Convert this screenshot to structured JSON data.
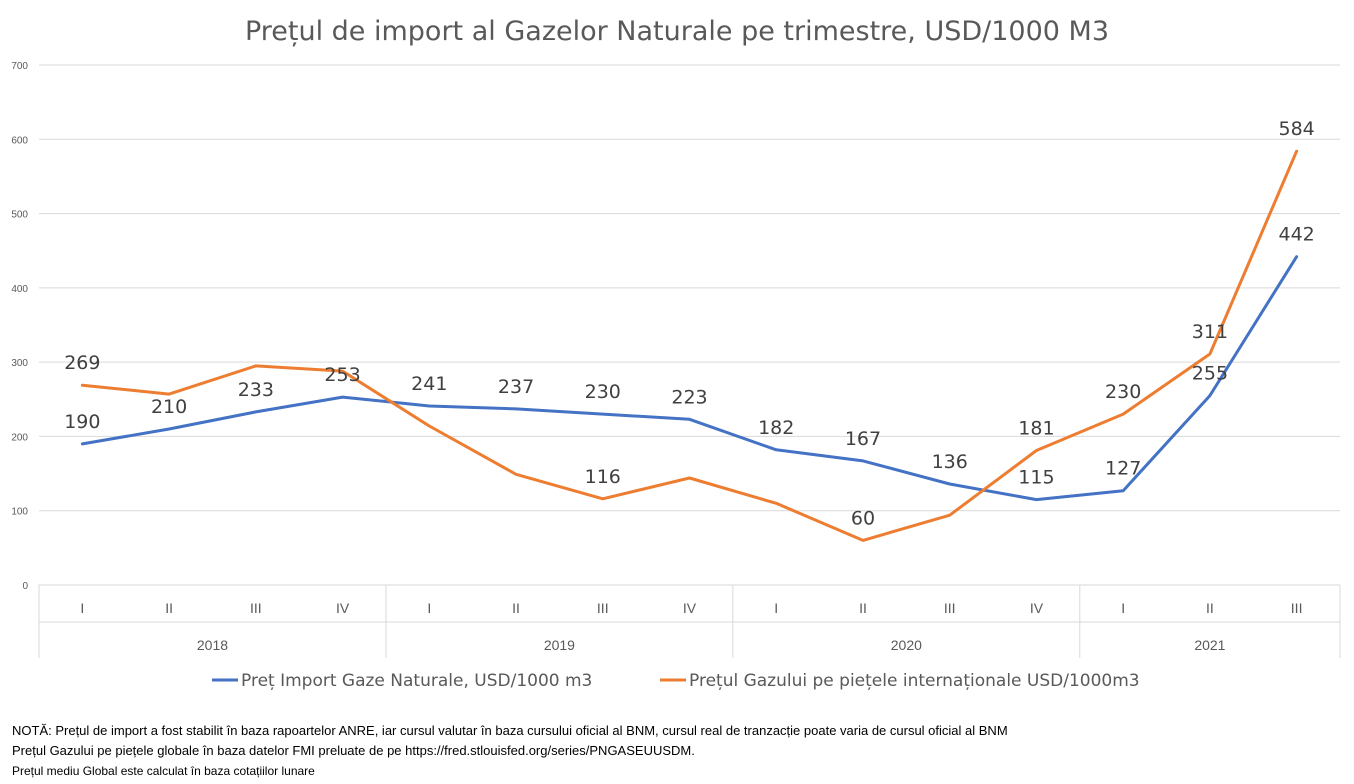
{
  "chart_data": {
    "type": "line",
    "title": "Prețul de import al Gazelor Naturale pe trimestre, USD/1000 M3",
    "ylim": [
      0,
      700
    ],
    "yticks": [
      0,
      100,
      200,
      300,
      400,
      500,
      600,
      700
    ],
    "grid": true,
    "legend_position": "bottom",
    "categories": [
      "I",
      "II",
      "III",
      "IV",
      "I",
      "II",
      "III",
      "IV",
      "I",
      "II",
      "III",
      "IV",
      "I",
      "II",
      "III"
    ],
    "groups": [
      {
        "label": "2018",
        "count": 4
      },
      {
        "label": "2019",
        "count": 4
      },
      {
        "label": "2020",
        "count": 4
      },
      {
        "label": "2021",
        "count": 3
      }
    ],
    "series": [
      {
        "name": "Preț Import Gaze Naturale, USD/1000 m3",
        "color": "#4472C4",
        "values": [
          190,
          210,
          233,
          253,
          241,
          237,
          230,
          223,
          182,
          167,
          136,
          115,
          127,
          255,
          442
        ],
        "labels_shown": [
          true,
          true,
          true,
          true,
          true,
          true,
          true,
          true,
          true,
          true,
          true,
          true,
          true,
          true,
          true
        ]
      },
      {
        "name": "Prețul Gazului pe piețele internaționale USD/1000m3",
        "color": "#ED7D31",
        "values": [
          269,
          257,
          295,
          288,
          214,
          149,
          116,
          144,
          110,
          60,
          94,
          181,
          230,
          311,
          584
        ],
        "labels_shown": [
          true,
          false,
          false,
          false,
          false,
          false,
          true,
          false,
          false,
          true,
          false,
          true,
          true,
          true,
          true
        ]
      }
    ]
  },
  "notes": [
    "NOTĂ: Prețul de import  a fost stabilit în baza rapoartelor ANRE, iar cursul valutar în baza cursului oficial al BNM, cursul real de tranzacție poate varia de cursul oficial al BNM",
    "Prețul  Gazului pe piețele globale în baza datelor FMI preluate de pe https://fred.stlouisfed.org/series/PNGASEUUSDM.",
    "Prețul mediu Global este calculat în baza cotațiilor lunare"
  ]
}
